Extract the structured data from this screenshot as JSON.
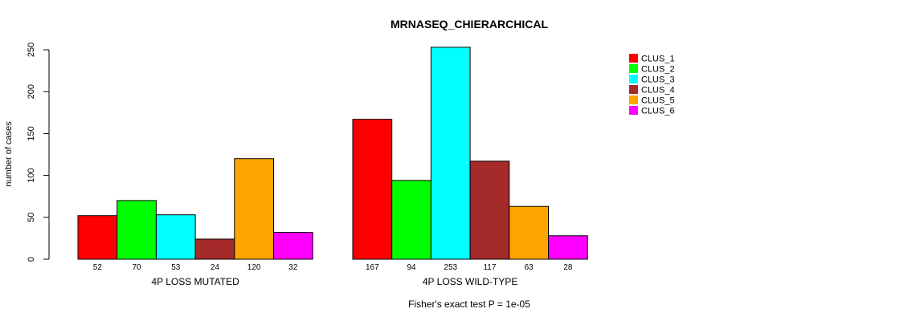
{
  "chart_data": {
    "type": "bar",
    "title": "MRNASEQ_CHIERARCHICAL",
    "ylabel": "number of cases",
    "ylim": [
      0,
      250
    ],
    "yticks": [
      0,
      50,
      100,
      150,
      200,
      250
    ],
    "categories": [
      "4P LOSS MUTATED",
      "4P LOSS WILD-TYPE"
    ],
    "series": [
      {
        "name": "CLUS_1",
        "color": "#ff0000",
        "values": [
          52,
          167
        ]
      },
      {
        "name": "CLUS_2",
        "color": "#00ff00",
        "values": [
          70,
          94
        ]
      },
      {
        "name": "CLUS_3",
        "color": "#00ffff",
        "values": [
          53,
          253
        ]
      },
      {
        "name": "CLUS_4",
        "color": "#a52a2a",
        "values": [
          24,
          117
        ]
      },
      {
        "name": "CLUS_5",
        "color": "#ffa500",
        "values": [
          120,
          63
        ]
      },
      {
        "name": "CLUS_6",
        "color": "#ff00ff",
        "values": [
          32,
          28
        ]
      }
    ],
    "legend_position": "top-right",
    "grid": false,
    "footer": "Fisher's exact test P = 1e-05"
  }
}
